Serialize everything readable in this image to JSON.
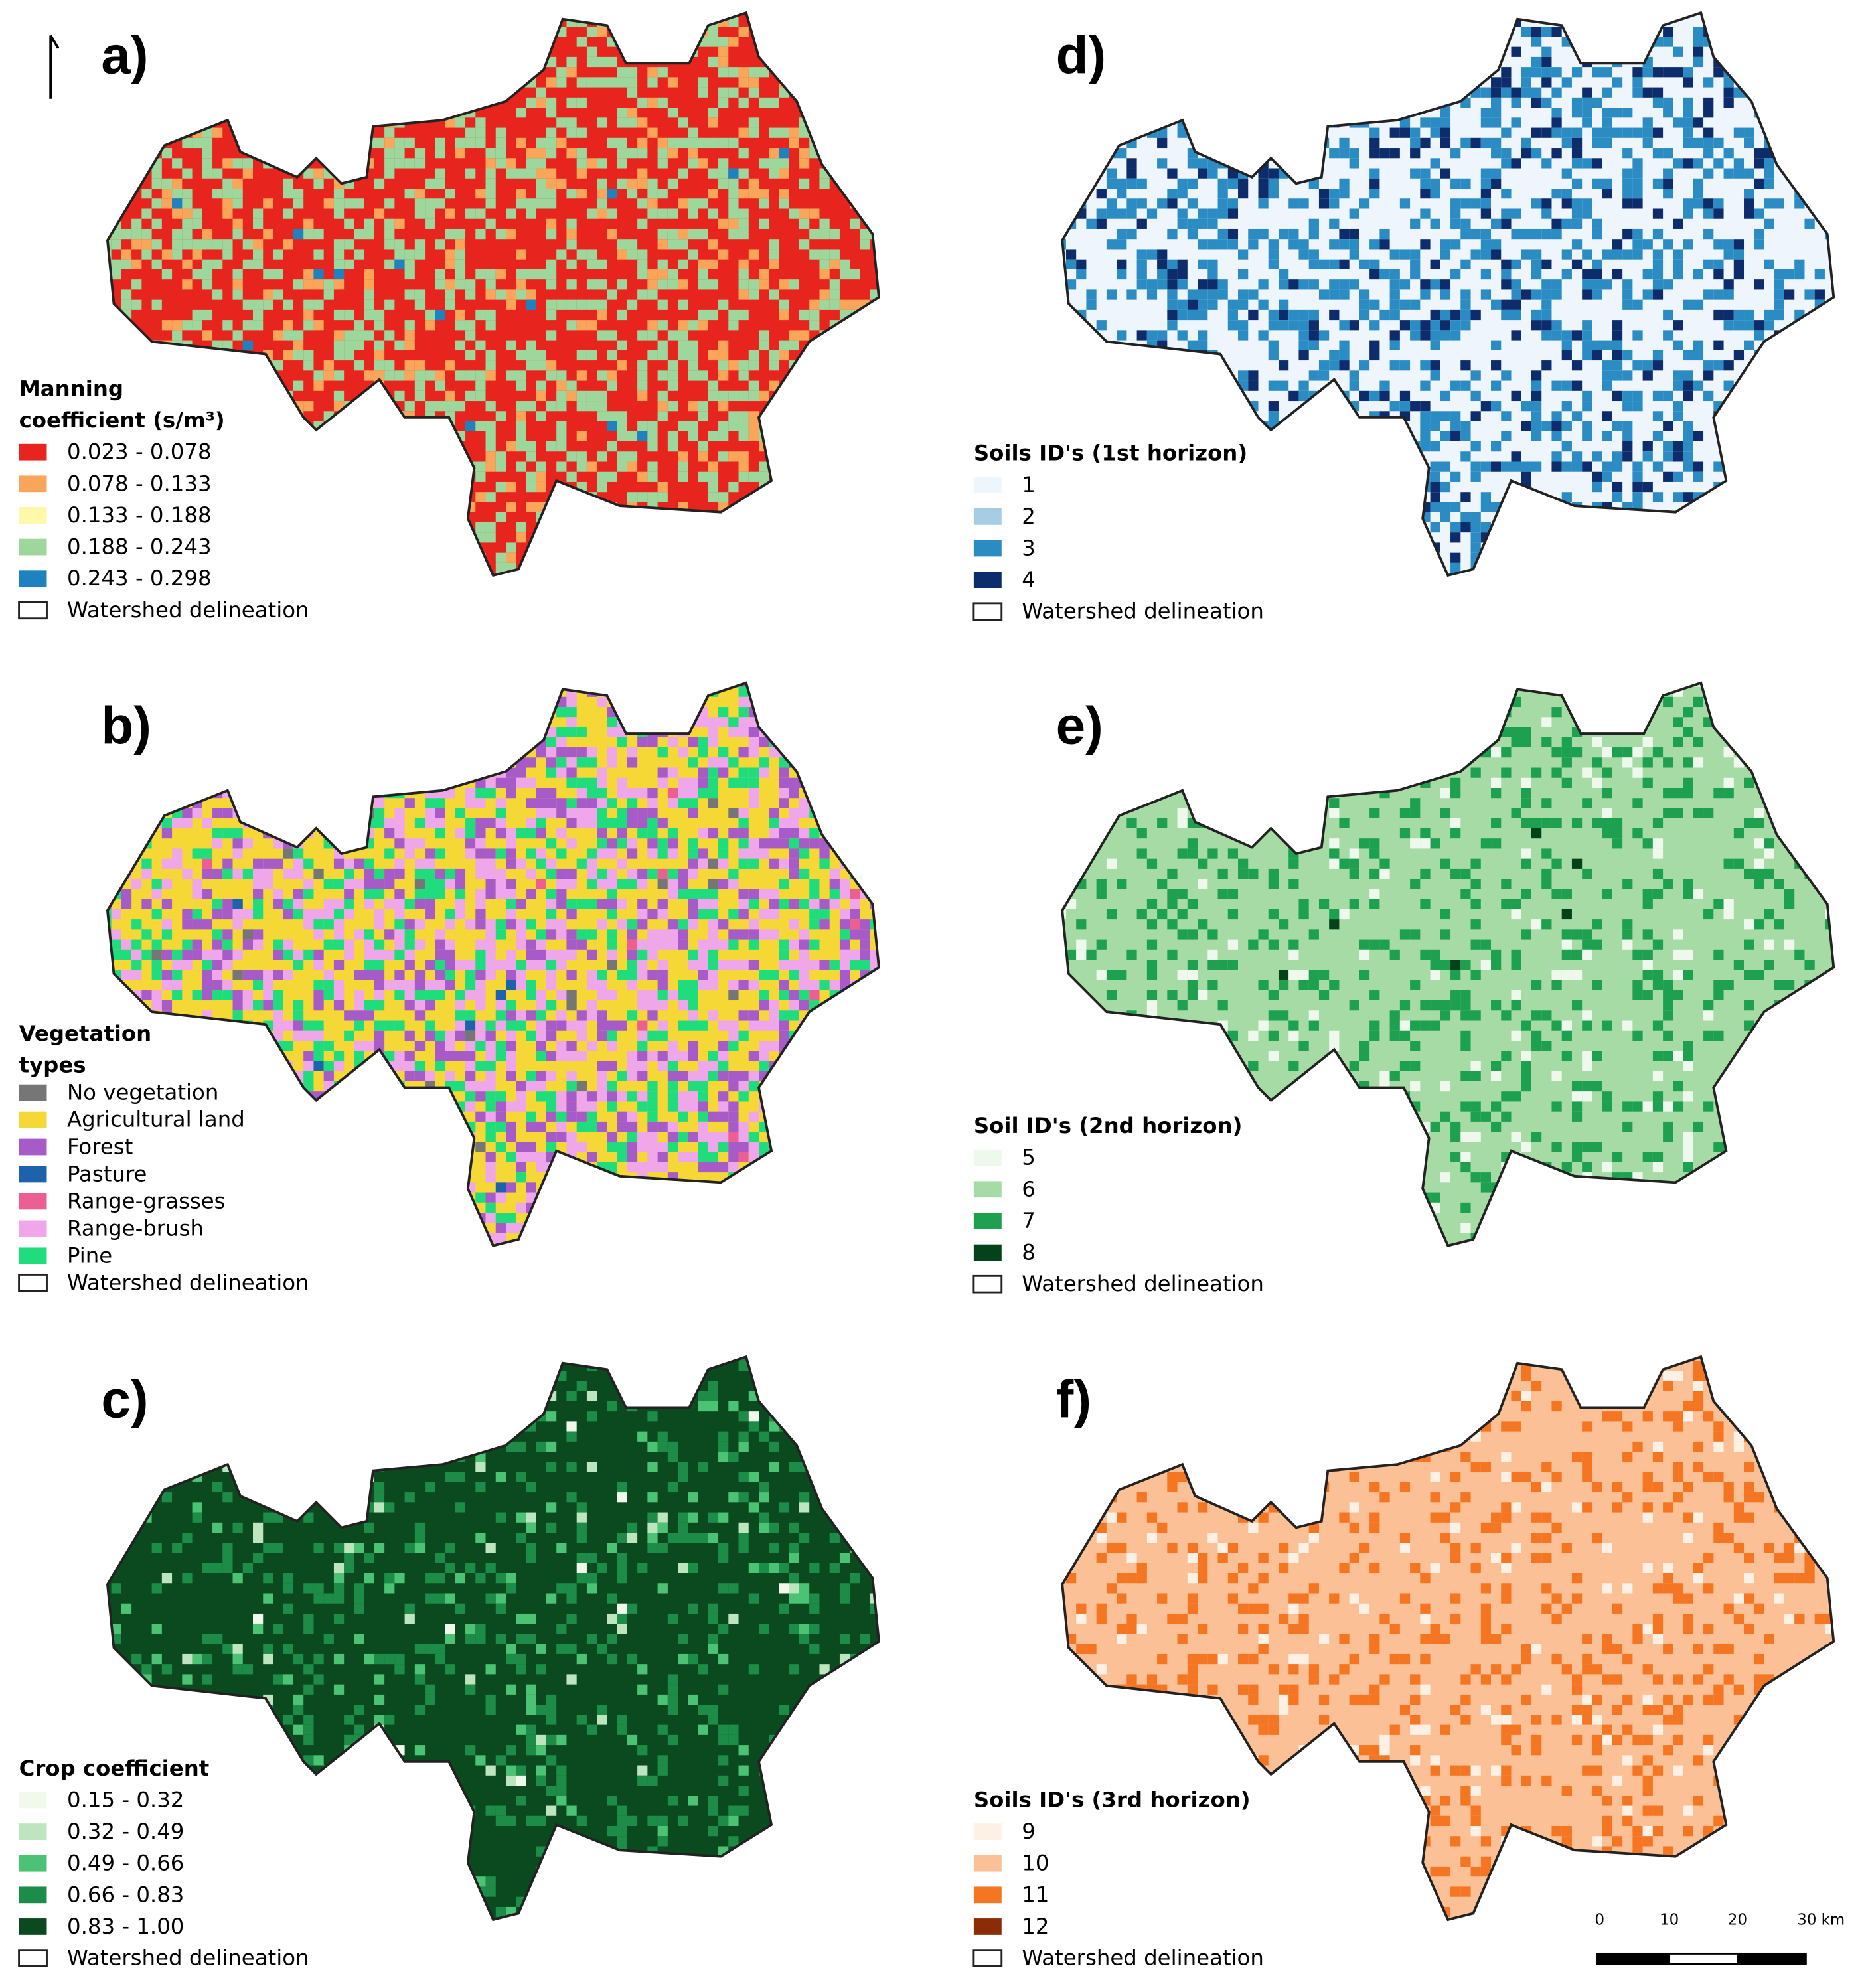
{
  "panels": [
    {
      "label": "a)",
      "legend_title": [
        "Manning",
        "coefficient (s/m³)"
      ],
      "items": [
        {
          "label": "0.023 - 0.078",
          "color": "#e8241f"
        },
        {
          "label": "0.078 - 0.133",
          "color": "#f9a55a"
        },
        {
          "label": "0.133 - 0.188",
          "color": "#fdf9a8"
        },
        {
          "label": "0.188 - 0.243",
          "color": "#9dd79b"
        },
        {
          "label": "0.243 - 0.298",
          "color": "#1f82c0"
        }
      ],
      "outline_label": "Watershed delineation"
    },
    {
      "label": "b)",
      "legend_title": [
        "Vegetation",
        "types"
      ],
      "items": [
        {
          "label": "No vegetation",
          "color": "#767676"
        },
        {
          "label": "Agricultural land",
          "color": "#f5d735"
        },
        {
          "label": "Forest",
          "color": "#a65bc9"
        },
        {
          "label": "Pasture",
          "color": "#1c62ad"
        },
        {
          "label": "Range-grasses",
          "color": "#ec5f93"
        },
        {
          "label": "Range-brush",
          "color": "#f0a6ea"
        },
        {
          "label": "Pine",
          "color": "#1fdc7c"
        }
      ],
      "outline_label": "Watershed delineation"
    },
    {
      "label": "c)",
      "legend_title": [
        "Crop coefficient"
      ],
      "items": [
        {
          "label": "0.15 - 0.32",
          "color": "#f0f9ec"
        },
        {
          "label": "0.32 - 0.49",
          "color": "#bde5be"
        },
        {
          "label": "0.49 - 0.66",
          "color": "#4cc274"
        },
        {
          "label": "0.66 - 0.83",
          "color": "#1d8c48"
        },
        {
          "label": "0.83 - 1.00",
          "color": "#0b4a1e"
        }
      ],
      "outline_label": "Watershed delineation"
    },
    {
      "label": "d)",
      "legend_title": [
        "Soils ID's (1st horizon)"
      ],
      "items": [
        {
          "label": "1",
          "color": "#eff5fc"
        },
        {
          "label": "2",
          "color": "#a6cde4"
        },
        {
          "label": "3",
          "color": "#2b8cc4"
        },
        {
          "label": "4",
          "color": "#0c2c6b"
        }
      ],
      "outline_label": "Watershed delineation"
    },
    {
      "label": "e)",
      "legend_title": [
        "Soil ID's (2nd horizon)"
      ],
      "items": [
        {
          "label": "5",
          "color": "#eef8ec"
        },
        {
          "label": "6",
          "color": "#a7dba5"
        },
        {
          "label": "7",
          "color": "#1da150"
        },
        {
          "label": "8",
          "color": "#044219"
        }
      ],
      "outline_label": "Watershed delineation"
    },
    {
      "label": "f)",
      "legend_title": [
        "Soils ID's (3rd horizon)"
      ],
      "items": [
        {
          "label": "9",
          "color": "#fdf0e4"
        },
        {
          "label": "10",
          "color": "#fbc095"
        },
        {
          "label": "11",
          "color": "#f47522"
        },
        {
          "label": "12",
          "color": "#8c2c06"
        }
      ],
      "outline_label": "Watershed delineation"
    }
  ],
  "scale_bar": {
    "labels": [
      "0",
      "10",
      "20",
      "30 km"
    ]
  }
}
